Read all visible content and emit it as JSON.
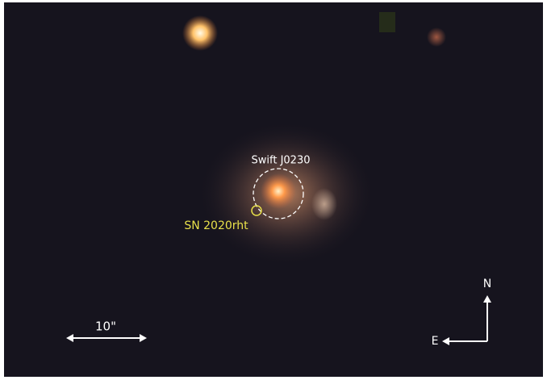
{
  "annotations": {
    "source": "Swift J0230",
    "supernova": "SN 2020rht",
    "scale_bar": "10\"",
    "north": "N",
    "east": "E"
  }
}
